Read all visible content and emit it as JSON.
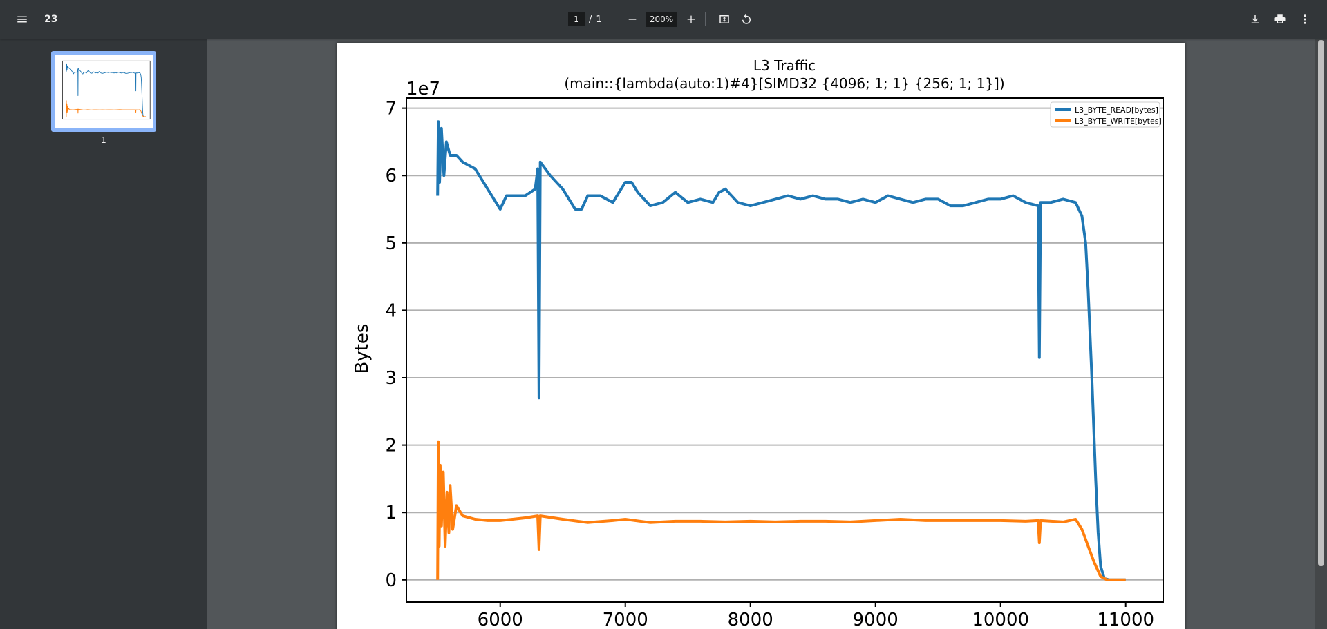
{
  "toolbar": {
    "doc_title": "23",
    "page_current": "1",
    "page_separator": "/",
    "page_total": "1",
    "zoom": "200%",
    "icons": [
      "menu-icon",
      "zoom-out-icon",
      "zoom-in-icon",
      "fit-page-icon",
      "rotate-icon",
      "download-icon",
      "print-icon",
      "more-vert-icon"
    ]
  },
  "sidebar": {
    "thumbnails": [
      {
        "label": "1"
      }
    ]
  },
  "colors": {
    "toolbar": "#323639",
    "viewer_bg": "#525659",
    "thumb_highlight": "#8ab4f8",
    "read_series": "#1f77b4",
    "write_series": "#ff7f0e"
  },
  "chart_data": {
    "type": "line",
    "title": "L3 Traffic",
    "subtitle": "(main::{lambda(auto:1)#4}[SIMD32 {4096; 1; 1} {256; 1; 1}])",
    "xlabel": "",
    "ylabel": "Bytes",
    "y_multiplier": "1e7",
    "xlim": [
      5250,
      11300
    ],
    "ylim": [
      -0.33,
      7.15
    ],
    "x_ticks": [
      6000,
      7000,
      8000,
      9000,
      10000,
      11000
    ],
    "y_ticks": [
      0,
      1,
      2,
      3,
      4,
      5,
      6,
      7
    ],
    "grid": "horizontal",
    "legend_position": "top-right",
    "series": [
      {
        "name": "L3_BYTE_READ[bytes]",
        "color": "#1f77b4",
        "points": [
          [
            5500,
            5.7
          ],
          [
            5505,
            6.8
          ],
          [
            5515,
            5.9
          ],
          [
            5530,
            6.7
          ],
          [
            5550,
            6.0
          ],
          [
            5570,
            6.5
          ],
          [
            5600,
            6.3
          ],
          [
            5650,
            6.3
          ],
          [
            5700,
            6.2
          ],
          [
            5800,
            6.1
          ],
          [
            5900,
            5.8
          ],
          [
            6000,
            5.5
          ],
          [
            6050,
            5.7
          ],
          [
            6100,
            5.7
          ],
          [
            6200,
            5.7
          ],
          [
            6280,
            5.8
          ],
          [
            6300,
            6.1
          ],
          [
            6310,
            2.7
          ],
          [
            6320,
            6.2
          ],
          [
            6400,
            6.0
          ],
          [
            6500,
            5.8
          ],
          [
            6600,
            5.5
          ],
          [
            6650,
            5.5
          ],
          [
            6700,
            5.7
          ],
          [
            6800,
            5.7
          ],
          [
            6900,
            5.6
          ],
          [
            7000,
            5.9
          ],
          [
            7050,
            5.9
          ],
          [
            7100,
            5.75
          ],
          [
            7200,
            5.55
          ],
          [
            7300,
            5.6
          ],
          [
            7400,
            5.75
          ],
          [
            7500,
            5.6
          ],
          [
            7600,
            5.65
          ],
          [
            7700,
            5.6
          ],
          [
            7750,
            5.75
          ],
          [
            7800,
            5.8
          ],
          [
            7900,
            5.6
          ],
          [
            8000,
            5.55
          ],
          [
            8100,
            5.6
          ],
          [
            8200,
            5.65
          ],
          [
            8300,
            5.7
          ],
          [
            8400,
            5.65
          ],
          [
            8500,
            5.7
          ],
          [
            8600,
            5.65
          ],
          [
            8700,
            5.65
          ],
          [
            8800,
            5.6
          ],
          [
            8900,
            5.65
          ],
          [
            9000,
            5.6
          ],
          [
            9100,
            5.7
          ],
          [
            9200,
            5.65
          ],
          [
            9300,
            5.6
          ],
          [
            9400,
            5.65
          ],
          [
            9500,
            5.65
          ],
          [
            9600,
            5.55
          ],
          [
            9700,
            5.55
          ],
          [
            9800,
            5.6
          ],
          [
            9900,
            5.65
          ],
          [
            10000,
            5.65
          ],
          [
            10100,
            5.7
          ],
          [
            10200,
            5.6
          ],
          [
            10300,
            5.55
          ],
          [
            10310,
            3.3
          ],
          [
            10320,
            5.6
          ],
          [
            10400,
            5.6
          ],
          [
            10500,
            5.65
          ],
          [
            10600,
            5.6
          ],
          [
            10650,
            5.4
          ],
          [
            10680,
            5.0
          ],
          [
            10700,
            4.3
          ],
          [
            10730,
            3.0
          ],
          [
            10760,
            1.5
          ],
          [
            10780,
            0.7
          ],
          [
            10800,
            0.2
          ],
          [
            10830,
            0.02
          ],
          [
            10870,
            0.0
          ],
          [
            11000,
            0.0
          ]
        ]
      },
      {
        "name": "L3_BYTE_WRITE[bytes]",
        "color": "#ff7f0e",
        "points": [
          [
            5500,
            0.0
          ],
          [
            5505,
            2.05
          ],
          [
            5512,
            0.5
          ],
          [
            5520,
            1.7
          ],
          [
            5530,
            0.8
          ],
          [
            5545,
            1.6
          ],
          [
            5560,
            0.5
          ],
          [
            5575,
            1.3
          ],
          [
            5590,
            0.7
          ],
          [
            5600,
            1.4
          ],
          [
            5620,
            0.75
          ],
          [
            5650,
            1.1
          ],
          [
            5700,
            0.95
          ],
          [
            5800,
            0.9
          ],
          [
            5900,
            0.88
          ],
          [
            6000,
            0.88
          ],
          [
            6100,
            0.9
          ],
          [
            6200,
            0.92
          ],
          [
            6300,
            0.95
          ],
          [
            6310,
            0.45
          ],
          [
            6320,
            0.95
          ],
          [
            6500,
            0.9
          ],
          [
            6700,
            0.85
          ],
          [
            6900,
            0.88
          ],
          [
            7000,
            0.9
          ],
          [
            7200,
            0.85
          ],
          [
            7400,
            0.87
          ],
          [
            7600,
            0.87
          ],
          [
            7800,
            0.86
          ],
          [
            8000,
            0.87
          ],
          [
            8200,
            0.86
          ],
          [
            8400,
            0.87
          ],
          [
            8600,
            0.87
          ],
          [
            8800,
            0.86
          ],
          [
            9000,
            0.88
          ],
          [
            9200,
            0.9
          ],
          [
            9400,
            0.88
          ],
          [
            9600,
            0.88
          ],
          [
            9800,
            0.88
          ],
          [
            10000,
            0.88
          ],
          [
            10200,
            0.87
          ],
          [
            10300,
            0.88
          ],
          [
            10310,
            0.55
          ],
          [
            10320,
            0.88
          ],
          [
            10500,
            0.86
          ],
          [
            10600,
            0.9
          ],
          [
            10650,
            0.75
          ],
          [
            10700,
            0.5
          ],
          [
            10750,
            0.25
          ],
          [
            10800,
            0.05
          ],
          [
            10850,
            0.0
          ],
          [
            11000,
            0.0
          ]
        ]
      }
    ]
  }
}
